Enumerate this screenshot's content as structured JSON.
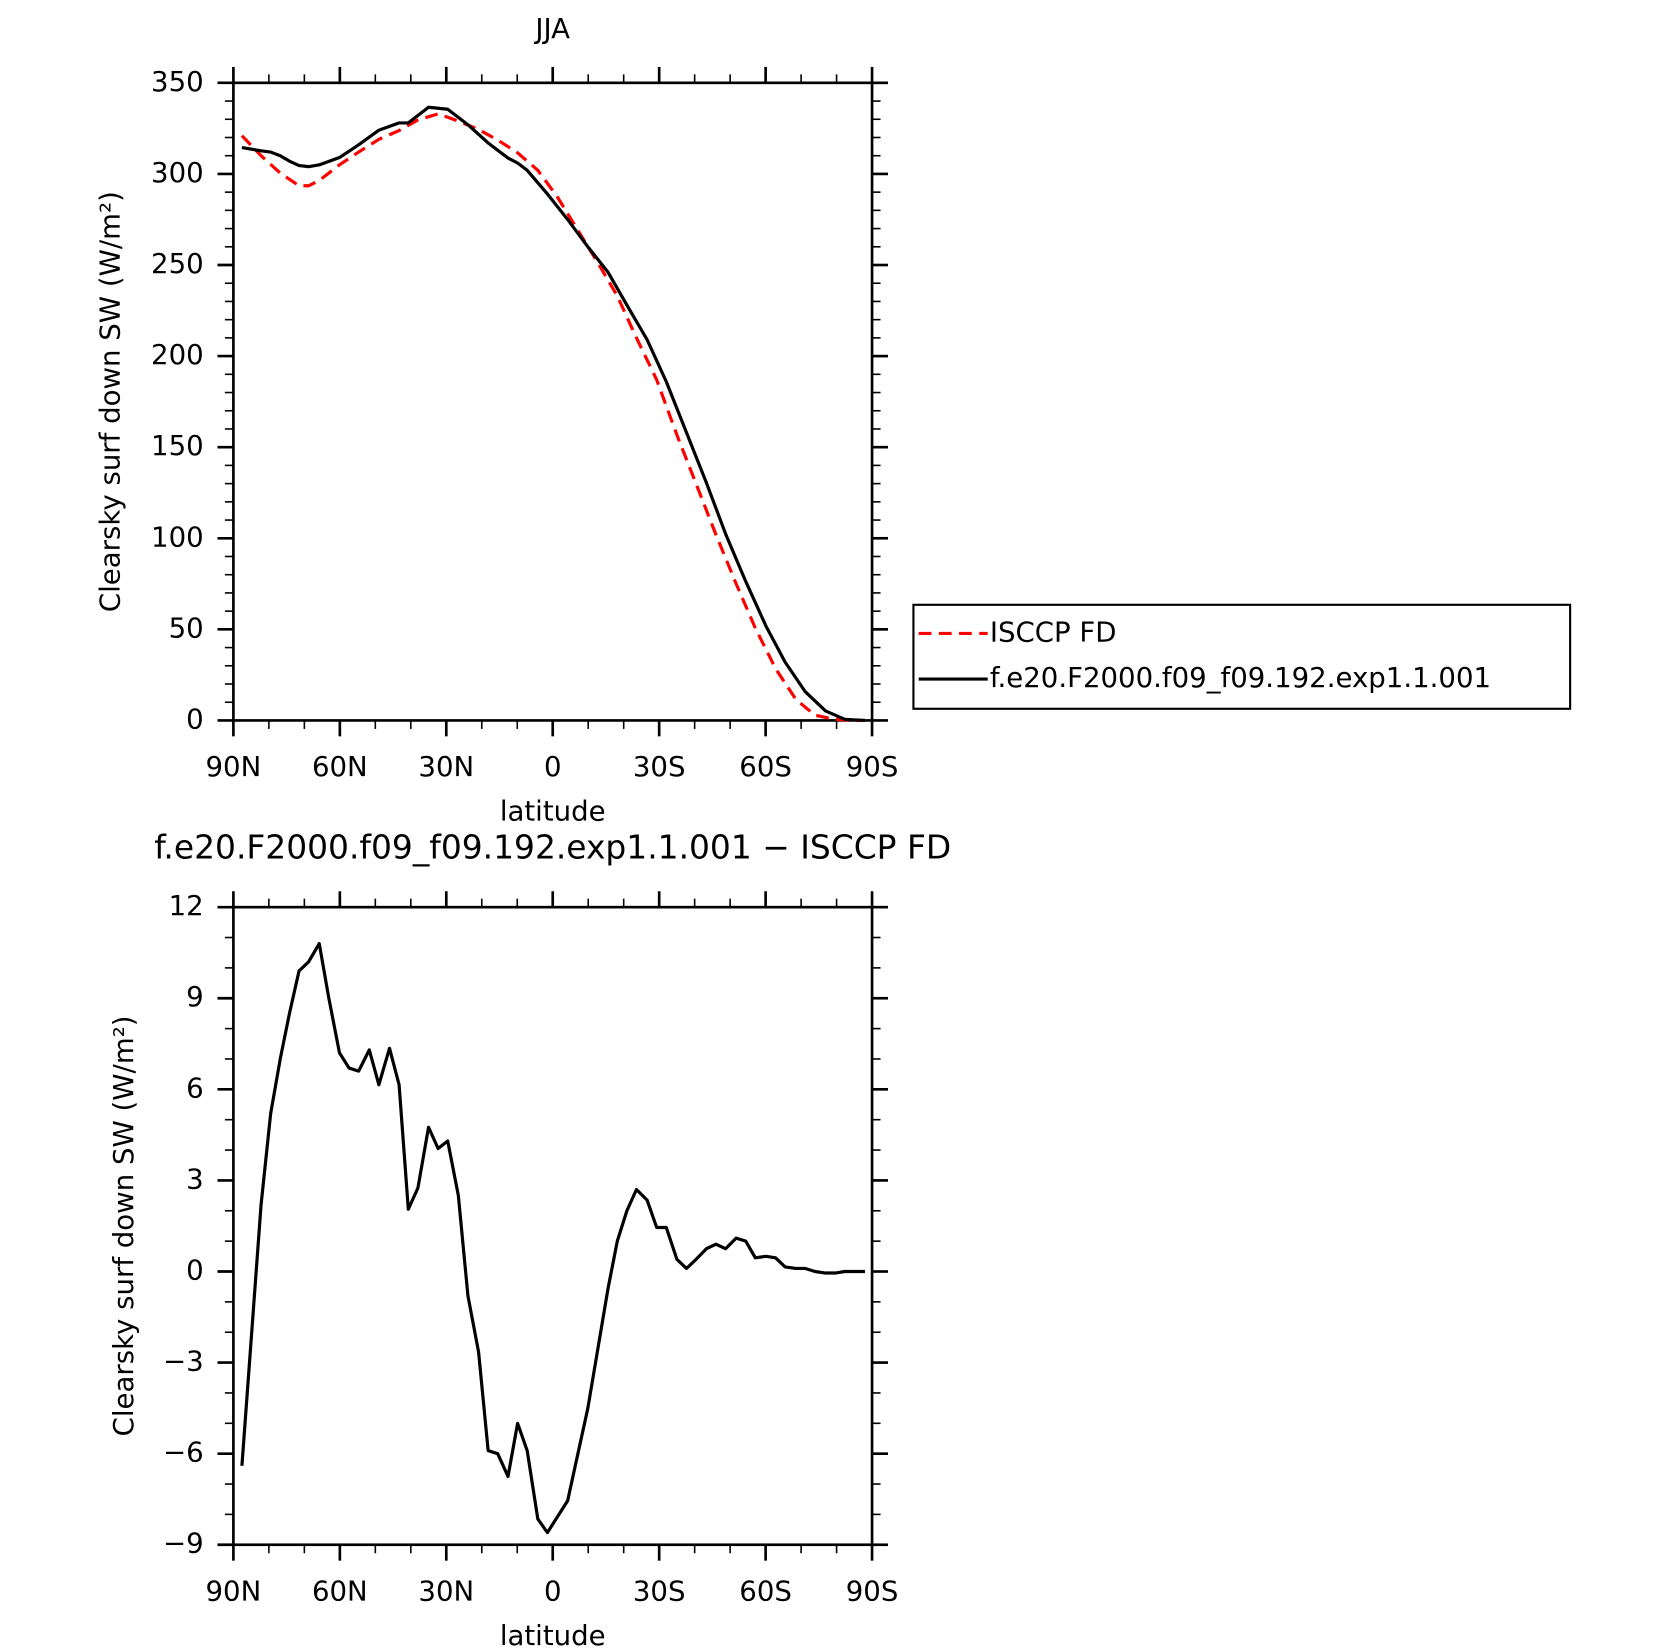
{
  "chart_data": [
    {
      "type": "line",
      "title": "JJA",
      "xlabel": "latitude",
      "ylabel": "Clearsky surf down SW (W/m²)",
      "xlim": [
        90,
        -90
      ],
      "xticks": [
        {
          "value": 90,
          "label": "90N"
        },
        {
          "value": 60,
          "label": "60N"
        },
        {
          "value": 30,
          "label": "30N"
        },
        0,
        {
          "value": -30,
          "label": "30S"
        },
        {
          "value": -60,
          "label": "60S"
        },
        {
          "value": -90,
          "label": "90S"
        }
      ],
      "ylim": [
        0,
        350
      ],
      "yticks": [
        0,
        50,
        100,
        150,
        200,
        250,
        300,
        350
      ],
      "legend": "right",
      "series": [
        {
          "name": "ISCCP FD",
          "color": "#ff0000",
          "style": "dashed",
          "x": [
            87.6,
            82.2,
            76.8,
            71.5,
            68.8,
            65.8,
            60.1,
            54.7,
            49,
            43.3,
            38,
            32.3,
            26.6,
            20.9,
            15.5,
            9.9,
            4.2,
            -1.2,
            -6.9,
            -12.6,
            -18.2,
            -23.6,
            -29.3,
            -35,
            -40.4,
            -46,
            -51.7,
            -57.1,
            -62.8,
            -68.5,
            -73.9,
            -79.6,
            -85.3,
            -88
          ],
          "values": [
            321,
            310,
            300.5,
            293.5,
            293.5,
            296.4,
            305,
            312,
            319,
            323.8,
            329.6,
            333,
            329,
            324.4,
            318.6,
            311.6,
            302,
            287.7,
            269.7,
            251.6,
            233,
            210,
            187,
            156.7,
            129.9,
            102,
            75,
            50.7,
            28.5,
            11.6,
            2.9,
            0.6,
            0,
            0
          ]
        },
        {
          "name": "f.e20.F2000.f09_f09.192.exp1.1.001",
          "color": "#000000",
          "style": "solid",
          "x": [
            87.6,
            82.2,
            79.5,
            76.8,
            74.2,
            71.5,
            68.8,
            65.8,
            60.1,
            54.7,
            49,
            43.3,
            40.7,
            35,
            29.6,
            23.9,
            18.2,
            12.6,
            9.9,
            7.2,
            1.5,
            -4.2,
            -9.9,
            -15.6,
            -20.9,
            -26.6,
            -32,
            -37.7,
            -43.3,
            -48.7,
            -54.4,
            -60.1,
            -65.5,
            -71.2,
            -76.9,
            -82.3,
            -88
          ],
          "values": [
            314.5,
            312.7,
            312,
            310,
            307,
            304.6,
            304,
            305,
            309,
            316,
            324,
            328,
            328,
            336.6,
            335.5,
            327,
            317,
            308.7,
            306,
            302,
            289,
            275,
            260,
            246,
            228,
            209,
            186,
            158,
            130.5,
            102.5,
            76.3,
            51.8,
            32,
            15.7,
            5.2,
            0.6,
            0
          ]
        }
      ]
    },
    {
      "type": "line",
      "title": "f.e20.F2000.f09_f09.192.exp1.1.001 − ISCCP FD",
      "xlabel": "latitude",
      "ylabel": "Clearsky surf down SW (W/m²)",
      "xlim": [
        90,
        -90
      ],
      "xticks": [
        {
          "value": 90,
          "label": "90N"
        },
        {
          "value": 60,
          "label": "60N"
        },
        {
          "value": 30,
          "label": "30N"
        },
        0,
        {
          "value": -30,
          "label": "30S"
        },
        {
          "value": -60,
          "label": "60S"
        },
        {
          "value": -90,
          "label": "90S"
        }
      ],
      "ylim": [
        -9,
        12
      ],
      "yticks": [
        {
          "value": -9,
          "label": "−9"
        },
        {
          "value": -6,
          "label": "−6"
        },
        {
          "value": -3,
          "label": "−3"
        },
        0,
        3,
        6,
        9,
        12
      ],
      "series": [
        {
          "color": "#000000",
          "style": "solid",
          "x": [
            87.6,
            82.2,
            79.5,
            76.8,
            74.2,
            71.5,
            68.8,
            65.8,
            63.1,
            60.1,
            57.4,
            54.7,
            51.7,
            49,
            46,
            43.3,
            40.7,
            38,
            35,
            32.3,
            29.6,
            26.6,
            23.9,
            20.9,
            18.2,
            15.5,
            12.6,
            9.9,
            7.2,
            4.2,
            1.5,
            -4.2,
            -9.9,
            -15.6,
            -18.2,
            -20.9,
            -23.6,
            -26.6,
            -29.3,
            -32,
            -35,
            -37.7,
            -40.4,
            -43.3,
            -46,
            -48.7,
            -51.7,
            -54.4,
            -57.1,
            -60.1,
            -62.8,
            -65.5,
            -68.5,
            -71.2,
            -73.9,
            -76.9,
            -79.6,
            -82.3,
            -85.3,
            -88
          ],
          "values": [
            -6.4,
            2.2,
            5.2,
            7,
            8.5,
            9.9,
            10.2,
            10.8,
            9,
            7.2,
            6.7,
            6.6,
            7.3,
            6.15,
            7.35,
            6.15,
            2.05,
            2.75,
            4.75,
            4.05,
            4.3,
            2.5,
            -0.8,
            -2.65,
            -5.9,
            -6,
            -6.75,
            -5,
            -5.9,
            -8.15,
            -8.6,
            -7.55,
            -4.5,
            -0.55,
            1,
            2,
            2.7,
            2.35,
            1.45,
            1.45,
            0.4,
            0.1,
            0.4,
            0.75,
            0.9,
            0.75,
            1.1,
            1,
            0.45,
            0.5,
            0.45,
            0.15,
            0.1,
            0.1,
            0,
            -0.05,
            -0.05,
            0,
            0,
            0
          ]
        }
      ]
    }
  ]
}
